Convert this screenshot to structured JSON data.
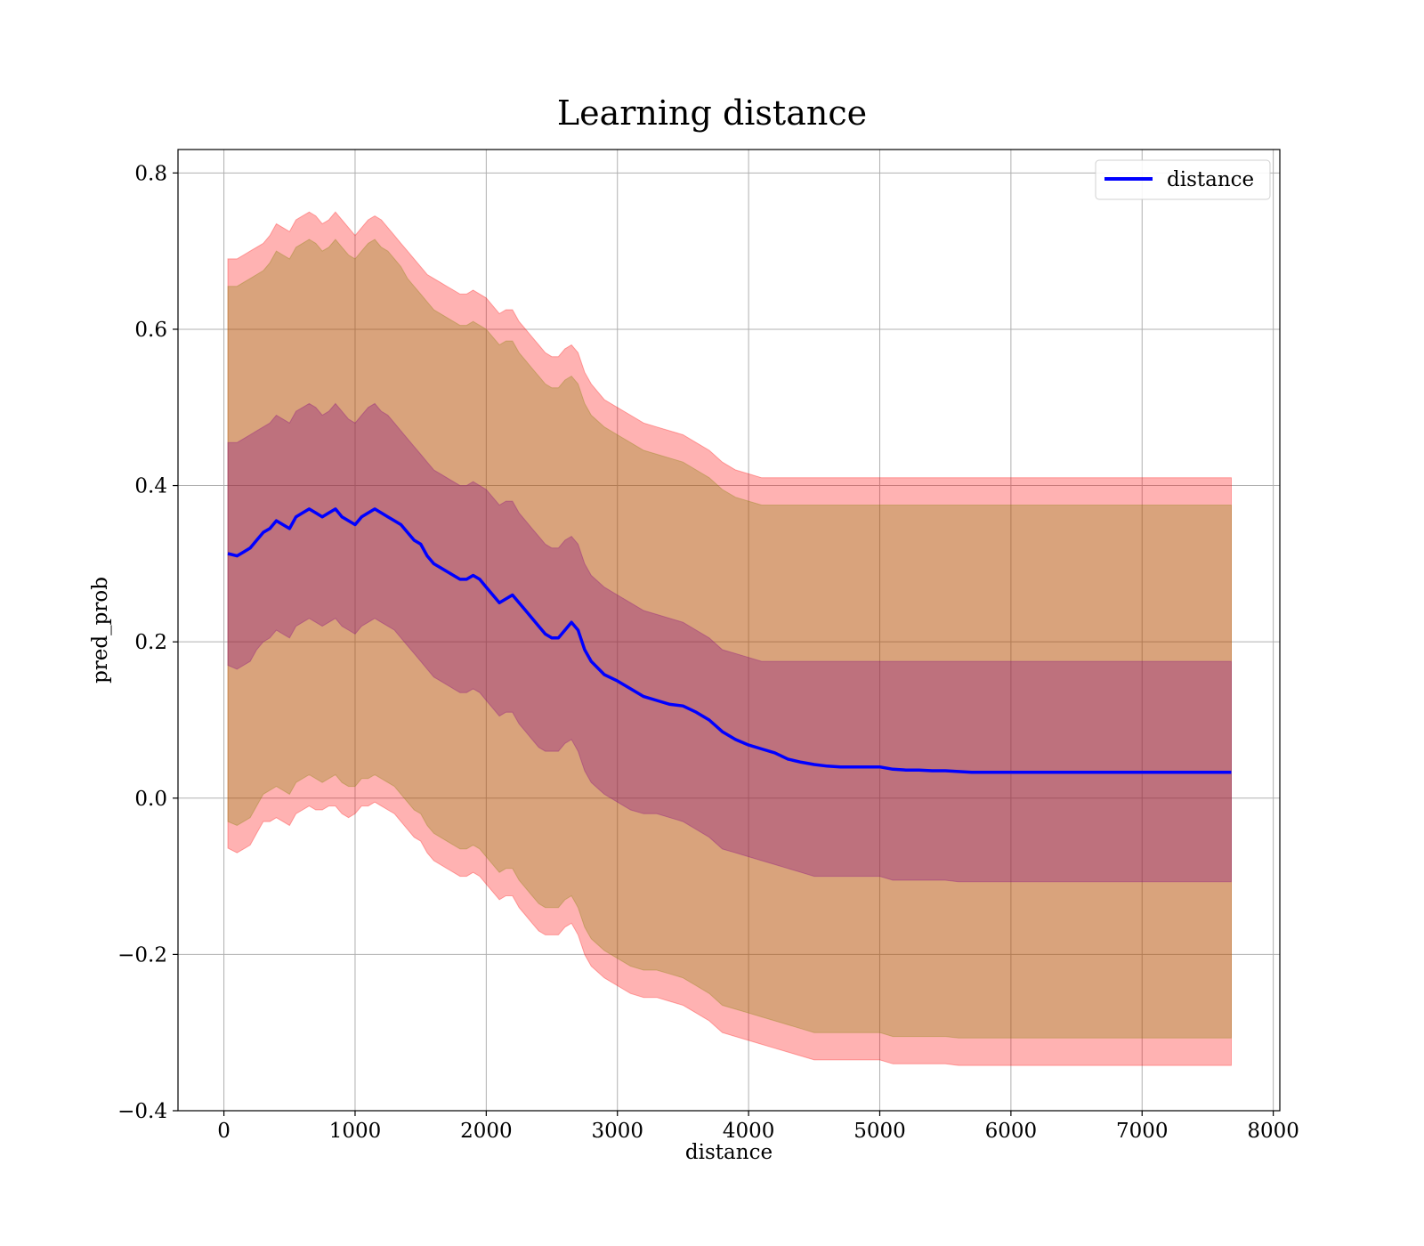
{
  "chart_data": {
    "type": "line",
    "title": "Learning distance",
    "xlabel": "distance",
    "ylabel": "pred_prob",
    "xlim": [
      -350,
      8050
    ],
    "ylim": [
      -0.4,
      0.83
    ],
    "x_ticks": [
      0,
      1000,
      2000,
      3000,
      4000,
      5000,
      6000,
      7000,
      8000
    ],
    "x_tick_labels": [
      "0",
      "1000",
      "2000",
      "3000",
      "4000",
      "5000",
      "6000",
      "7000",
      "8000"
    ],
    "y_ticks": [
      -0.4,
      -0.2,
      0.0,
      0.2,
      0.4,
      0.6,
      0.8
    ],
    "y_tick_labels": [
      "−0.4",
      "−0.2",
      "0.0",
      "0.2",
      "0.4",
      "0.6",
      "0.8"
    ],
    "grid": true,
    "legend_position": "top-right",
    "series": [
      {
        "name": "distance",
        "color": "#0000ff",
        "x": [
          30,
          100,
          150,
          200,
          250,
          300,
          350,
          400,
          450,
          500,
          550,
          600,
          650,
          700,
          750,
          800,
          850,
          900,
          950,
          1000,
          1050,
          1100,
          1150,
          1200,
          1250,
          1300,
          1350,
          1400,
          1450,
          1500,
          1550,
          1600,
          1650,
          1700,
          1750,
          1800,
          1850,
          1900,
          1950,
          2000,
          2050,
          2100,
          2150,
          2200,
          2250,
          2300,
          2350,
          2400,
          2450,
          2500,
          2550,
          2600,
          2650,
          2700,
          2750,
          2800,
          2900,
          3000,
          3100,
          3200,
          3300,
          3400,
          3500,
          3600,
          3700,
          3800,
          3900,
          4000,
          4100,
          4200,
          4300,
          4400,
          4500,
          4600,
          4700,
          4800,
          4900,
          5000,
          5100,
          5200,
          5300,
          5400,
          5500,
          5600,
          5700,
          5800,
          5900,
          6000,
          6200,
          6400,
          6600,
          6800,
          7000,
          7200,
          7400,
          7600,
          7680
        ],
        "y": [
          0.313,
          0.31,
          0.315,
          0.32,
          0.33,
          0.34,
          0.345,
          0.355,
          0.35,
          0.345,
          0.36,
          0.365,
          0.37,
          0.365,
          0.36,
          0.365,
          0.37,
          0.36,
          0.355,
          0.35,
          0.36,
          0.365,
          0.37,
          0.365,
          0.36,
          0.355,
          0.35,
          0.34,
          0.33,
          0.325,
          0.31,
          0.3,
          0.295,
          0.29,
          0.285,
          0.28,
          0.28,
          0.285,
          0.28,
          0.27,
          0.26,
          0.25,
          0.255,
          0.26,
          0.25,
          0.24,
          0.23,
          0.22,
          0.21,
          0.205,
          0.205,
          0.215,
          0.225,
          0.215,
          0.19,
          0.175,
          0.158,
          0.15,
          0.14,
          0.13,
          0.125,
          0.12,
          0.118,
          0.11,
          0.1,
          0.085,
          0.075,
          0.068,
          0.063,
          0.058,
          0.05,
          0.046,
          0.043,
          0.041,
          0.04,
          0.04,
          0.04,
          0.04,
          0.037,
          0.036,
          0.036,
          0.035,
          0.035,
          0.034,
          0.033,
          0.033,
          0.033,
          0.033,
          0.033,
          0.033,
          0.033,
          0.033,
          0.033,
          0.033,
          0.033,
          0.033,
          0.033
        ]
      }
    ],
    "bands": [
      {
        "color": "#ff0000",
        "opacity": 0.3,
        "upper": [
          0.69,
          0.69,
          0.695,
          0.7,
          0.705,
          0.71,
          0.72,
          0.735,
          0.73,
          0.725,
          0.74,
          0.745,
          0.75,
          0.745,
          0.735,
          0.74,
          0.75,
          0.74,
          0.73,
          0.72,
          0.73,
          0.74,
          0.745,
          0.74,
          0.73,
          0.72,
          0.71,
          0.7,
          0.69,
          0.68,
          0.67,
          0.665,
          0.66,
          0.655,
          0.65,
          0.645,
          0.645,
          0.65,
          0.645,
          0.64,
          0.63,
          0.62,
          0.625,
          0.625,
          0.61,
          0.6,
          0.59,
          0.58,
          0.57,
          0.565,
          0.565,
          0.575,
          0.58,
          0.57,
          0.545,
          0.53,
          0.51,
          0.5,
          0.49,
          0.48,
          0.475,
          0.47,
          0.465,
          0.455,
          0.445,
          0.43,
          0.42,
          0.415,
          0.41,
          0.41,
          0.41,
          0.41,
          0.41,
          0.41,
          0.41,
          0.41,
          0.41,
          0.41,
          0.41,
          0.41,
          0.41,
          0.41,
          0.41,
          0.41,
          0.41,
          0.41,
          0.41,
          0.41,
          0.41,
          0.41,
          0.41,
          0.41,
          0.41,
          0.41,
          0.41,
          0.41,
          0.41
        ],
        "lower": [
          -0.064,
          -0.07,
          -0.065,
          -0.06,
          -0.045,
          -0.03,
          -0.03,
          -0.025,
          -0.03,
          -0.035,
          -0.02,
          -0.015,
          -0.01,
          -0.015,
          -0.015,
          -0.01,
          -0.01,
          -0.02,
          -0.025,
          -0.02,
          -0.01,
          -0.01,
          -0.005,
          -0.01,
          -0.015,
          -0.02,
          -0.03,
          -0.04,
          -0.05,
          -0.055,
          -0.07,
          -0.08,
          -0.085,
          -0.09,
          -0.095,
          -0.1,
          -0.1,
          -0.095,
          -0.1,
          -0.11,
          -0.12,
          -0.13,
          -0.125,
          -0.125,
          -0.14,
          -0.15,
          -0.16,
          -0.17,
          -0.175,
          -0.175,
          -0.175,
          -0.165,
          -0.16,
          -0.175,
          -0.2,
          -0.215,
          -0.23,
          -0.24,
          -0.25,
          -0.255,
          -0.255,
          -0.26,
          -0.265,
          -0.275,
          -0.285,
          -0.3,
          -0.305,
          -0.31,
          -0.315,
          -0.32,
          -0.325,
          -0.33,
          -0.335,
          -0.335,
          -0.335,
          -0.335,
          -0.335,
          -0.335,
          -0.34,
          -0.34,
          -0.34,
          -0.34,
          -0.34,
          -0.342,
          -0.342,
          -0.342,
          -0.342,
          -0.342,
          -0.342,
          -0.342,
          -0.342,
          -0.342,
          -0.342,
          -0.342,
          -0.342,
          -0.342,
          -0.342
        ]
      },
      {
        "color": "#808000",
        "opacity": 0.3,
        "upper": [
          0.655,
          0.655,
          0.66,
          0.665,
          0.67,
          0.675,
          0.685,
          0.7,
          0.695,
          0.69,
          0.705,
          0.71,
          0.715,
          0.71,
          0.7,
          0.705,
          0.715,
          0.705,
          0.695,
          0.69,
          0.7,
          0.71,
          0.715,
          0.705,
          0.7,
          0.69,
          0.68,
          0.665,
          0.655,
          0.645,
          0.635,
          0.625,
          0.62,
          0.615,
          0.61,
          0.605,
          0.605,
          0.61,
          0.605,
          0.6,
          0.59,
          0.58,
          0.585,
          0.585,
          0.57,
          0.56,
          0.55,
          0.54,
          0.53,
          0.525,
          0.525,
          0.535,
          0.54,
          0.53,
          0.505,
          0.49,
          0.475,
          0.465,
          0.455,
          0.445,
          0.44,
          0.435,
          0.43,
          0.42,
          0.41,
          0.395,
          0.385,
          0.38,
          0.375,
          0.375,
          0.375,
          0.375,
          0.375,
          0.375,
          0.375,
          0.375,
          0.375,
          0.375,
          0.375,
          0.375,
          0.375,
          0.375,
          0.375,
          0.375,
          0.375,
          0.375,
          0.375,
          0.375,
          0.375,
          0.375,
          0.375,
          0.375,
          0.375,
          0.375,
          0.375,
          0.375,
          0.375
        ],
        "lower": [
          -0.03,
          -0.035,
          -0.03,
          -0.025,
          -0.01,
          0.005,
          0.01,
          0.015,
          0.01,
          0.005,
          0.02,
          0.025,
          0.03,
          0.025,
          0.02,
          0.025,
          0.03,
          0.02,
          0.015,
          0.015,
          0.025,
          0.025,
          0.03,
          0.025,
          0.02,
          0.015,
          0.005,
          -0.005,
          -0.015,
          -0.02,
          -0.035,
          -0.045,
          -0.05,
          -0.055,
          -0.06,
          -0.065,
          -0.065,
          -0.06,
          -0.065,
          -0.075,
          -0.085,
          -0.095,
          -0.09,
          -0.09,
          -0.105,
          -0.115,
          -0.125,
          -0.135,
          -0.14,
          -0.14,
          -0.14,
          -0.13,
          -0.125,
          -0.14,
          -0.165,
          -0.18,
          -0.195,
          -0.205,
          -0.215,
          -0.22,
          -0.22,
          -0.225,
          -0.23,
          -0.24,
          -0.25,
          -0.265,
          -0.27,
          -0.275,
          -0.28,
          -0.285,
          -0.29,
          -0.295,
          -0.3,
          -0.3,
          -0.3,
          -0.3,
          -0.3,
          -0.3,
          -0.305,
          -0.305,
          -0.305,
          -0.305,
          -0.305,
          -0.307,
          -0.307,
          -0.307,
          -0.307,
          -0.307,
          -0.307,
          -0.307,
          -0.307,
          -0.307,
          -0.307,
          -0.307,
          -0.307,
          -0.307,
          -0.307
        ]
      },
      {
        "color": "#800080",
        "opacity": 0.3,
        "upper": [
          0.455,
          0.455,
          0.46,
          0.465,
          0.47,
          0.475,
          0.48,
          0.49,
          0.485,
          0.48,
          0.495,
          0.5,
          0.505,
          0.5,
          0.49,
          0.495,
          0.505,
          0.495,
          0.485,
          0.48,
          0.49,
          0.5,
          0.505,
          0.495,
          0.49,
          0.48,
          0.47,
          0.46,
          0.45,
          0.44,
          0.43,
          0.42,
          0.415,
          0.41,
          0.405,
          0.4,
          0.4,
          0.405,
          0.4,
          0.395,
          0.385,
          0.375,
          0.38,
          0.38,
          0.365,
          0.355,
          0.345,
          0.335,
          0.325,
          0.32,
          0.32,
          0.33,
          0.335,
          0.325,
          0.3,
          0.285,
          0.27,
          0.26,
          0.25,
          0.24,
          0.235,
          0.23,
          0.225,
          0.215,
          0.205,
          0.19,
          0.185,
          0.18,
          0.175,
          0.175,
          0.175,
          0.175,
          0.175,
          0.175,
          0.175,
          0.175,
          0.175,
          0.175,
          0.175,
          0.175,
          0.175,
          0.175,
          0.175,
          0.175,
          0.175,
          0.175,
          0.175,
          0.175,
          0.175,
          0.175,
          0.175,
          0.175,
          0.175,
          0.175,
          0.175,
          0.175,
          0.175
        ],
        "lower": [
          0.17,
          0.165,
          0.17,
          0.175,
          0.19,
          0.2,
          0.205,
          0.215,
          0.21,
          0.205,
          0.22,
          0.225,
          0.23,
          0.225,
          0.22,
          0.225,
          0.23,
          0.22,
          0.215,
          0.21,
          0.22,
          0.225,
          0.23,
          0.225,
          0.22,
          0.215,
          0.205,
          0.195,
          0.185,
          0.175,
          0.165,
          0.155,
          0.15,
          0.145,
          0.14,
          0.135,
          0.135,
          0.14,
          0.135,
          0.125,
          0.115,
          0.105,
          0.11,
          0.11,
          0.095,
          0.085,
          0.075,
          0.065,
          0.06,
          0.06,
          0.06,
          0.07,
          0.075,
          0.06,
          0.035,
          0.02,
          0.005,
          -0.005,
          -0.015,
          -0.02,
          -0.02,
          -0.025,
          -0.03,
          -0.04,
          -0.05,
          -0.065,
          -0.07,
          -0.075,
          -0.08,
          -0.085,
          -0.09,
          -0.095,
          -0.1,
          -0.1,
          -0.1,
          -0.1,
          -0.1,
          -0.1,
          -0.105,
          -0.105,
          -0.105,
          -0.105,
          -0.105,
          -0.107,
          -0.107,
          -0.107,
          -0.107,
          -0.107,
          -0.107,
          -0.107,
          -0.107,
          -0.107,
          -0.107,
          -0.107,
          -0.107,
          -0.107,
          -0.107
        ]
      }
    ]
  }
}
